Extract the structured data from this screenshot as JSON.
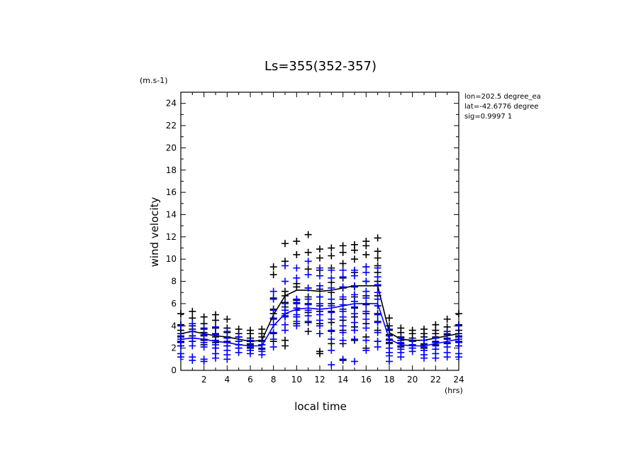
{
  "chart_data": {
    "type": "scatter",
    "title": "Ls=355(352-357)",
    "xlabel": "local time",
    "ylabel": "wind velocity",
    "xunit": "(hrs)",
    "yunit": "(m.s-1)",
    "xlim": [
      0,
      24
    ],
    "ylim": [
      0,
      25
    ],
    "xticks": [
      2,
      4,
      6,
      8,
      10,
      12,
      14,
      16,
      18,
      20,
      22,
      24
    ],
    "yticks": [
      0,
      2,
      4,
      6,
      8,
      10,
      12,
      14,
      16,
      18,
      20,
      22,
      24
    ],
    "info": [
      "lon=202.5 degree_ea",
      "lat=-42.6776 degree",
      "sig=0.9997 1"
    ],
    "colors": {
      "series1": "#000000",
      "series2": "#0000ff"
    },
    "series": [
      {
        "color": "#000000",
        "marker": "plus",
        "mean_line": {
          "x": [
            0,
            1,
            2,
            3,
            4,
            5,
            6,
            7,
            8,
            9,
            10,
            11,
            12,
            13,
            14,
            15,
            16,
            17,
            18,
            19,
            20,
            21,
            22,
            23,
            24
          ],
          "y": [
            3.3,
            3.5,
            3.3,
            3.1,
            3.0,
            2.8,
            2.6,
            2.7,
            5.0,
            6.7,
            7.2,
            7.2,
            7.1,
            7.2,
            7.4,
            7.6,
            7.6,
            7.6,
            3.4,
            2.8,
            2.7,
            2.7,
            2.9,
            3.1,
            3.3
          ]
        },
        "points": {
          "0": [
            5.1,
            4.1,
            3.6,
            3.3,
            3.0,
            2.6,
            2.2
          ],
          "1": [
            5.3,
            4.7,
            4.0,
            3.7,
            3.5,
            3.1,
            2.6
          ],
          "2": [
            4.8,
            4.2,
            3.7,
            3.4,
            3.1,
            2.7,
            2.3
          ],
          "3": [
            5.0,
            4.5,
            3.8,
            3.3,
            3.0,
            2.5,
            2.0
          ],
          "4": [
            4.6,
            3.8,
            3.4,
            3.0,
            2.6,
            2.2
          ],
          "5": [
            3.7,
            3.3,
            3.0,
            2.6,
            2.3,
            2.0
          ],
          "6": [
            3.6,
            3.3,
            2.9,
            2.6,
            2.3,
            2.0
          ],
          "7": [
            3.7,
            3.3,
            3.0,
            2.7,
            2.3,
            1.9
          ],
          "8": [
            9.3,
            8.6,
            6.5,
            5.5,
            5.1,
            4.6,
            3.3,
            2.6
          ],
          "9": [
            11.4,
            9.8,
            7.1,
            6.7,
            6.1,
            5.7,
            4.9,
            2.7,
            2.2
          ],
          "10": [
            11.6,
            10.4,
            7.8,
            7.5,
            6.3,
            6.0,
            5.4,
            4.8,
            4.2
          ],
          "11": [
            12.2,
            10.6,
            9.1,
            7.4,
            6.6,
            6.0,
            5.2,
            4.3,
            3.5
          ],
          "12": [
            10.9,
            10.1,
            9.0,
            7.3,
            6.6,
            5.8,
            5.3,
            4.2,
            3.3,
            1.7,
            1.5
          ],
          "13": [
            11.0,
            10.3,
            9.2,
            7.9,
            7.0,
            6.0,
            5.3,
            4.3,
            3.5,
            2.4
          ],
          "14": [
            11.2,
            10.6,
            9.6,
            8.3,
            7.4,
            6.4,
            5.5,
            4.5,
            3.6,
            2.4,
            0.9
          ],
          "15": [
            11.3,
            10.8,
            10.0,
            8.8,
            7.5,
            6.6,
            5.6,
            4.8,
            3.9,
            2.7
          ],
          "16": [
            11.6,
            11.2,
            10.4,
            9.3,
            8.0,
            6.7,
            5.9,
            5.1,
            4.2,
            3.0,
            2.0
          ],
          "17": [
            11.9,
            10.7,
            10.1,
            9.4,
            8.8,
            8.0,
            7.6,
            6.7,
            5.8,
            5.1,
            4.4,
            3.6,
            2.6
          ],
          "18": [
            4.7,
            4.0,
            3.6,
            3.2,
            2.8,
            2.5
          ],
          "19": [
            3.8,
            3.4,
            3.0,
            2.7,
            2.4,
            2.1
          ],
          "20": [
            3.6,
            3.3,
            2.9,
            2.6,
            2.3,
            2.0
          ],
          "21": [
            3.7,
            3.3,
            3.0,
            2.7,
            2.3,
            2.0
          ],
          "22": [
            4.1,
            3.6,
            3.3,
            3.0,
            2.6,
            2.3
          ],
          "23": [
            4.6,
            3.9,
            3.5,
            3.2,
            2.8,
            2.4
          ],
          "24": [
            5.1,
            4.1,
            3.6,
            3.3,
            3.0,
            2.6,
            2.2
          ]
        }
      },
      {
        "color": "#0000ff",
        "marker": "plus",
        "mean_line": {
          "x": [
            0,
            1,
            2,
            3,
            4,
            5,
            6,
            7,
            8,
            9,
            10,
            11,
            12,
            13,
            14,
            15,
            16,
            17,
            18,
            19,
            20,
            21,
            22,
            23,
            24
          ],
          "y": [
            2.8,
            2.9,
            2.8,
            2.6,
            2.5,
            2.3,
            2.2,
            2.2,
            4.0,
            5.1,
            5.5,
            5.6,
            5.5,
            5.6,
            5.8,
            6.0,
            6.0,
            6.0,
            2.8,
            2.3,
            2.2,
            2.2,
            2.4,
            2.6,
            2.8
          ]
        },
        "points": {
          "0": [
            4.0,
            3.1,
            2.8,
            2.5,
            2.2,
            1.5,
            1.2
          ],
          "1": [
            4.2,
            3.5,
            2.9,
            2.6,
            2.2,
            1.2,
            0.9
          ],
          "2": [
            3.8,
            3.2,
            2.8,
            2.5,
            2.1,
            1.0,
            0.8
          ],
          "3": [
            3.9,
            3.2,
            2.7,
            2.3,
            2.0,
            1.5,
            1.1
          ],
          "4": [
            3.5,
            2.9,
            2.5,
            2.2,
            1.8,
            1.4,
            1.0
          ],
          "5": [
            3.0,
            2.6,
            2.3,
            2.0,
            1.6
          ],
          "6": [
            2.7,
            2.4,
            2.1,
            1.8,
            1.5
          ],
          "7": [
            2.6,
            2.3,
            2.0,
            1.7,
            1.4
          ],
          "8": [
            7.1,
            6.4,
            5.4,
            4.7,
            4.1,
            3.4,
            2.8,
            2.1
          ],
          "9": [
            9.4,
            8.0,
            6.0,
            5.4,
            5.1,
            4.8,
            4.1,
            3.6
          ],
          "10": [
            9.2,
            8.3,
            6.4,
            6.1,
            5.6,
            5.0,
            4.8,
            4.4,
            4.0
          ],
          "11": [
            9.8,
            8.6,
            7.4,
            6.4,
            5.9,
            5.4,
            4.9,
            4.4
          ],
          "12": [
            9.2,
            8.5,
            7.6,
            6.6,
            6.0,
            5.5,
            5.0,
            4.5,
            4.0,
            3.3
          ],
          "13": [
            9.0,
            8.3,
            7.4,
            6.4,
            5.8,
            5.2,
            4.6,
            3.6,
            2.8,
            1.8,
            0.5
          ],
          "14": [
            9.0,
            8.4,
            7.5,
            6.6,
            5.9,
            5.3,
            4.8,
            4.0,
            3.4,
            2.7,
            1.0
          ],
          "15": [
            9.0,
            8.5,
            7.6,
            6.8,
            6.2,
            5.7,
            5.1,
            4.3,
            3.6,
            2.8,
            0.8
          ],
          "16": [
            9.3,
            8.8,
            8.0,
            7.1,
            6.5,
            6.0,
            5.3,
            4.6,
            3.8,
            2.7,
            1.8
          ],
          "17": [
            9.2,
            8.4,
            7.7,
            7.0,
            6.4,
            5.8,
            5.0,
            4.3,
            3.4,
            2.6,
            2.1
          ],
          "18": [
            3.7,
            3.1,
            2.7,
            2.4,
            2.0,
            1.6,
            1.3,
            0.8
          ],
          "19": [
            2.9,
            2.5,
            2.2,
            1.9,
            1.6,
            1.2
          ],
          "20": [
            2.6,
            2.3,
            2.0,
            1.7
          ],
          "21": [
            2.7,
            2.4,
            2.1,
            1.8,
            1.4,
            1.1
          ],
          "22": [
            2.9,
            2.5,
            2.2,
            1.9,
            1.5,
            1.1
          ],
          "23": [
            3.3,
            2.9,
            2.5,
            2.1,
            1.6,
            1.2
          ],
          "24": [
            4.0,
            3.1,
            2.8,
            2.5,
            2.2,
            1.5,
            1.2
          ]
        }
      }
    ]
  }
}
